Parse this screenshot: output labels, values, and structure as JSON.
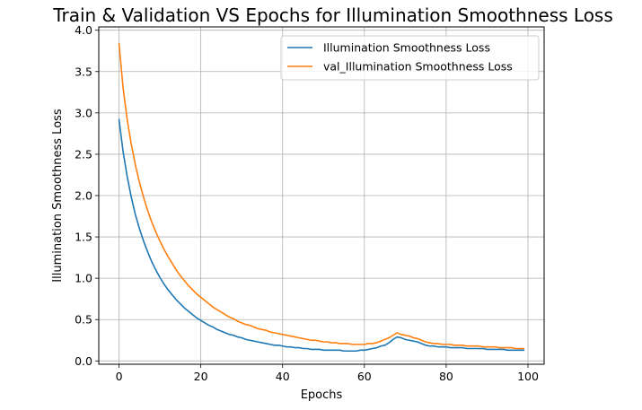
{
  "chart_data": {
    "type": "line",
    "title": "Train & Validation VS Epochs for Illumination Smoothness Loss",
    "xlabel": "Epochs",
    "ylabel": "Illumination Smoothness Loss",
    "xlim": [
      -4.95,
      103.95
    ],
    "ylim": [
      -0.04,
      4.04
    ],
    "xticks": [
      0,
      20,
      40,
      60,
      80,
      100
    ],
    "yticks": [
      0.0,
      0.5,
      1.0,
      1.5,
      2.0,
      2.5,
      3.0,
      3.5,
      4.0
    ],
    "xtick_labels": [
      "0",
      "20",
      "40",
      "60",
      "80",
      "100"
    ],
    "ytick_labels": [
      "0.0",
      "0.5",
      "1.0",
      "1.5",
      "2.0",
      "2.5",
      "3.0",
      "3.5",
      "4.0"
    ],
    "grid": true,
    "legend_position": "top-right",
    "series": [
      {
        "name": "Illumination Smoothness Loss",
        "color": "#1f77b4",
        "x": [
          0,
          1,
          2,
          3,
          4,
          5,
          6,
          7,
          8,
          9,
          10,
          11,
          12,
          13,
          14,
          15,
          16,
          17,
          18,
          19,
          20,
          21,
          22,
          23,
          24,
          25,
          26,
          27,
          28,
          29,
          30,
          31,
          32,
          33,
          34,
          35,
          36,
          37,
          38,
          39,
          40,
          41,
          42,
          43,
          44,
          45,
          46,
          47,
          48,
          49,
          50,
          51,
          52,
          53,
          54,
          55,
          56,
          57,
          58,
          59,
          60,
          61,
          62,
          63,
          64,
          65,
          66,
          67,
          68,
          69,
          70,
          71,
          72,
          73,
          74,
          75,
          76,
          77,
          78,
          79,
          80,
          81,
          82,
          83,
          84,
          85,
          86,
          87,
          88,
          89,
          90,
          91,
          92,
          93,
          94,
          95,
          96,
          97,
          98,
          99
        ],
        "values": [
          2.92,
          2.53,
          2.23,
          1.98,
          1.77,
          1.6,
          1.45,
          1.32,
          1.2,
          1.1,
          1.01,
          0.93,
          0.86,
          0.8,
          0.74,
          0.69,
          0.64,
          0.6,
          0.56,
          0.52,
          0.49,
          0.46,
          0.43,
          0.41,
          0.38,
          0.36,
          0.34,
          0.32,
          0.31,
          0.29,
          0.28,
          0.26,
          0.25,
          0.24,
          0.23,
          0.22,
          0.21,
          0.2,
          0.19,
          0.19,
          0.18,
          0.17,
          0.17,
          0.16,
          0.16,
          0.15,
          0.15,
          0.14,
          0.14,
          0.14,
          0.13,
          0.13,
          0.13,
          0.13,
          0.13,
          0.12,
          0.12,
          0.12,
          0.12,
          0.13,
          0.13,
          0.14,
          0.15,
          0.16,
          0.18,
          0.19,
          0.22,
          0.26,
          0.29,
          0.28,
          0.26,
          0.25,
          0.24,
          0.23,
          0.21,
          0.19,
          0.18,
          0.18,
          0.17,
          0.17,
          0.17,
          0.16,
          0.16,
          0.16,
          0.16,
          0.15,
          0.15,
          0.15,
          0.15,
          0.15,
          0.14,
          0.14,
          0.14,
          0.14,
          0.14,
          0.13,
          0.13,
          0.13,
          0.13,
          0.13
        ]
      },
      {
        "name": "val_Illumination Smoothness Loss",
        "color": "#ff7f0e",
        "x": [
          0,
          1,
          2,
          3,
          4,
          5,
          6,
          7,
          8,
          9,
          10,
          11,
          12,
          13,
          14,
          15,
          16,
          17,
          18,
          19,
          20,
          21,
          22,
          23,
          24,
          25,
          26,
          27,
          28,
          29,
          30,
          31,
          32,
          33,
          34,
          35,
          36,
          37,
          38,
          39,
          40,
          41,
          42,
          43,
          44,
          45,
          46,
          47,
          48,
          49,
          50,
          51,
          52,
          53,
          54,
          55,
          56,
          57,
          58,
          59,
          60,
          61,
          62,
          63,
          64,
          65,
          66,
          67,
          68,
          69,
          70,
          71,
          72,
          73,
          74,
          75,
          76,
          77,
          78,
          79,
          80,
          81,
          82,
          83,
          84,
          85,
          86,
          87,
          88,
          89,
          90,
          91,
          92,
          93,
          94,
          95,
          96,
          97,
          98,
          99
        ],
        "values": [
          3.84,
          3.3,
          2.92,
          2.62,
          2.37,
          2.16,
          1.98,
          1.82,
          1.68,
          1.56,
          1.45,
          1.35,
          1.26,
          1.18,
          1.1,
          1.03,
          0.97,
          0.91,
          0.86,
          0.81,
          0.77,
          0.73,
          0.69,
          0.65,
          0.62,
          0.59,
          0.56,
          0.53,
          0.51,
          0.48,
          0.46,
          0.44,
          0.43,
          0.41,
          0.39,
          0.38,
          0.37,
          0.35,
          0.34,
          0.33,
          0.32,
          0.31,
          0.3,
          0.29,
          0.28,
          0.27,
          0.26,
          0.25,
          0.25,
          0.24,
          0.23,
          0.23,
          0.22,
          0.22,
          0.21,
          0.21,
          0.21,
          0.2,
          0.2,
          0.2,
          0.2,
          0.21,
          0.21,
          0.22,
          0.24,
          0.26,
          0.28,
          0.31,
          0.34,
          0.32,
          0.31,
          0.3,
          0.28,
          0.27,
          0.25,
          0.23,
          0.22,
          0.21,
          0.21,
          0.2,
          0.2,
          0.2,
          0.19,
          0.19,
          0.19,
          0.18,
          0.18,
          0.18,
          0.18,
          0.17,
          0.17,
          0.17,
          0.17,
          0.16,
          0.16,
          0.16,
          0.16,
          0.15,
          0.15,
          0.15
        ]
      }
    ]
  }
}
